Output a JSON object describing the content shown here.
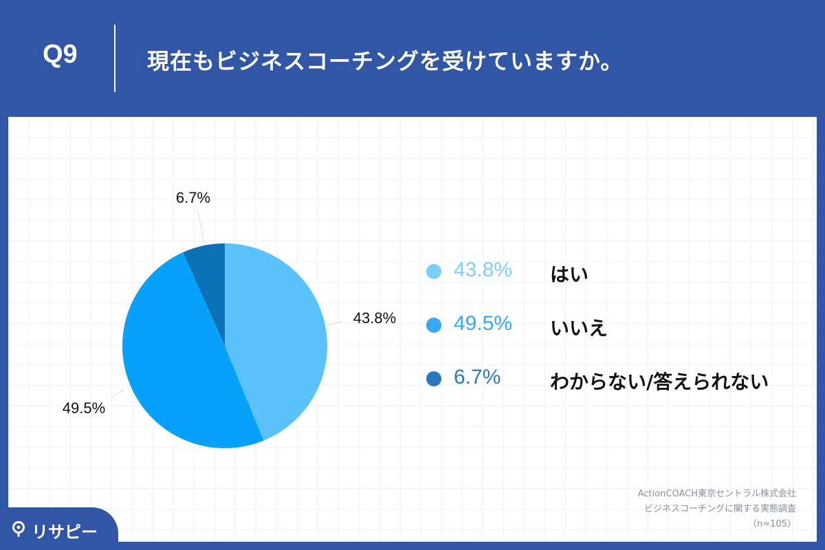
{
  "header": {
    "question_number": "Q9",
    "question_text": "現在もビジネスコーチングを受けていますか。"
  },
  "chart_data": {
    "type": "pie",
    "categories": [
      "はい",
      "いいえ",
      "わからない/答えられない"
    ],
    "values": [
      43.8,
      49.5,
      6.7
    ],
    "value_labels": [
      "43.8%",
      "49.5%",
      "6.7%"
    ],
    "colors": [
      "#5bc2fc",
      "#07a0fa",
      "#0c72b8"
    ],
    "legend_colors": [
      "#7dcdfa",
      "#36a8f7",
      "#2a77c0"
    ],
    "legend_placement": "right",
    "start_angle_deg": 0,
    "direction": "clockwise"
  },
  "legend": {
    "items": [
      {
        "percent": "43.8%",
        "label": "はい"
      },
      {
        "percent": "49.5%",
        "label": "いいえ"
      },
      {
        "percent": "6.7%",
        "label": "わからない/答えられない"
      }
    ]
  },
  "source": {
    "line1": "ActionCOACH東京セントラル株式会社",
    "line2": "ビジネスコーチングに関する実態調査",
    "line3": "（n=105）"
  },
  "logo": {
    "text": "リサピー",
    "icon": "pin-icon"
  }
}
